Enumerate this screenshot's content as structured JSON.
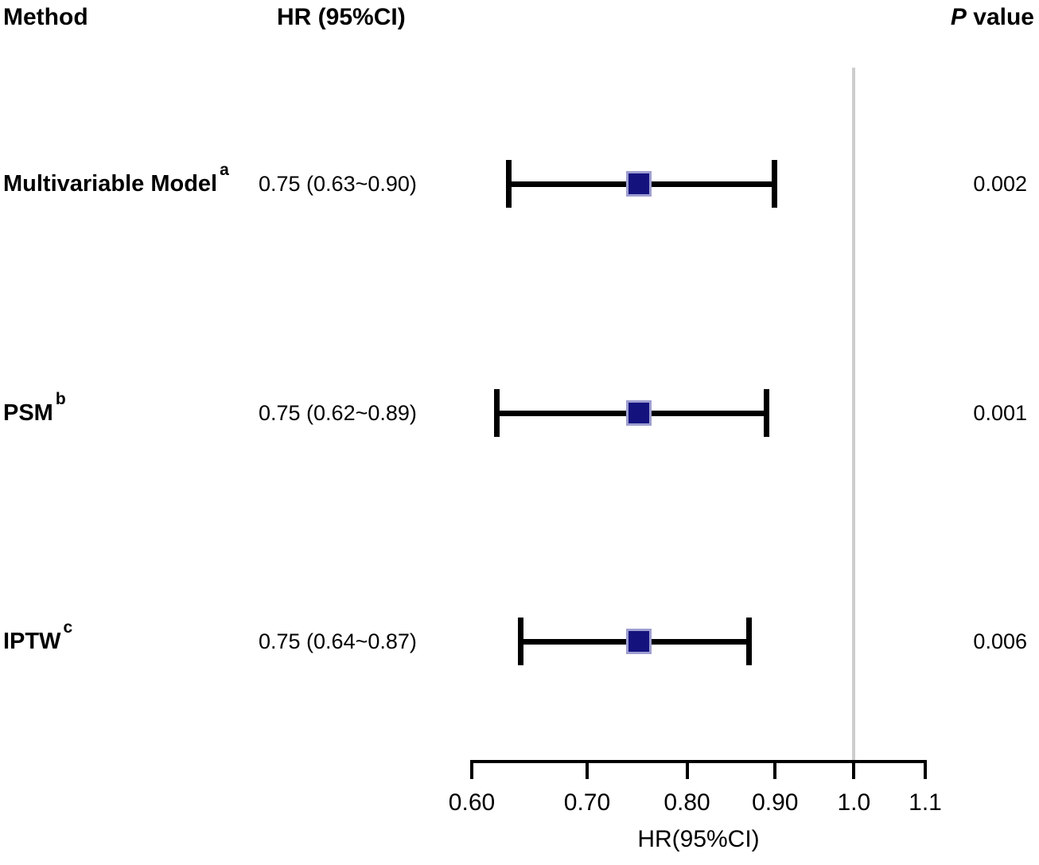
{
  "header": {
    "method": "Method",
    "hr": "HR (95%CI)",
    "p_italic": "P",
    "p_rest": " value"
  },
  "colors": {
    "text": "#000000",
    "ci_line": "#000000",
    "marker_fill": "#14137E",
    "marker_border": "#9E9ED1",
    "reference_line": "#CDCDCD",
    "axis": "#000000"
  },
  "chart_data": {
    "type": "forest",
    "title": "",
    "xlabel": "HR(95%CI)",
    "xscale": "log",
    "xlim": [
      0.6,
      1.1
    ],
    "xticks": [
      0.6,
      0.7,
      0.8,
      0.9,
      1.0,
      1.1
    ],
    "xtick_labels": [
      "0.60",
      "0.70",
      "0.80",
      "0.90",
      "1.0",
      "1.1"
    ],
    "reference_line": 1.0,
    "grid": false,
    "legend": "none",
    "columns": [
      "Method",
      "HR (95%CI)",
      "P value"
    ],
    "rows": [
      {
        "method": "Multivariable Model",
        "superscript": "a",
        "hr_text": "0.75 (0.63~0.90)",
        "hr": 0.75,
        "ci_low": 0.63,
        "ci_high": 0.9,
        "p_value": "0.002"
      },
      {
        "method": "PSM",
        "superscript": "b",
        "hr_text": "0.75 (0.62~0.89)",
        "hr": 0.75,
        "ci_low": 0.62,
        "ci_high": 0.89,
        "p_value": "0.001"
      },
      {
        "method": "IPTW",
        "superscript": "c",
        "hr_text": "0.75 (0.64~0.87)",
        "hr": 0.75,
        "ci_low": 0.64,
        "ci_high": 0.87,
        "p_value": "0.006"
      }
    ]
  }
}
